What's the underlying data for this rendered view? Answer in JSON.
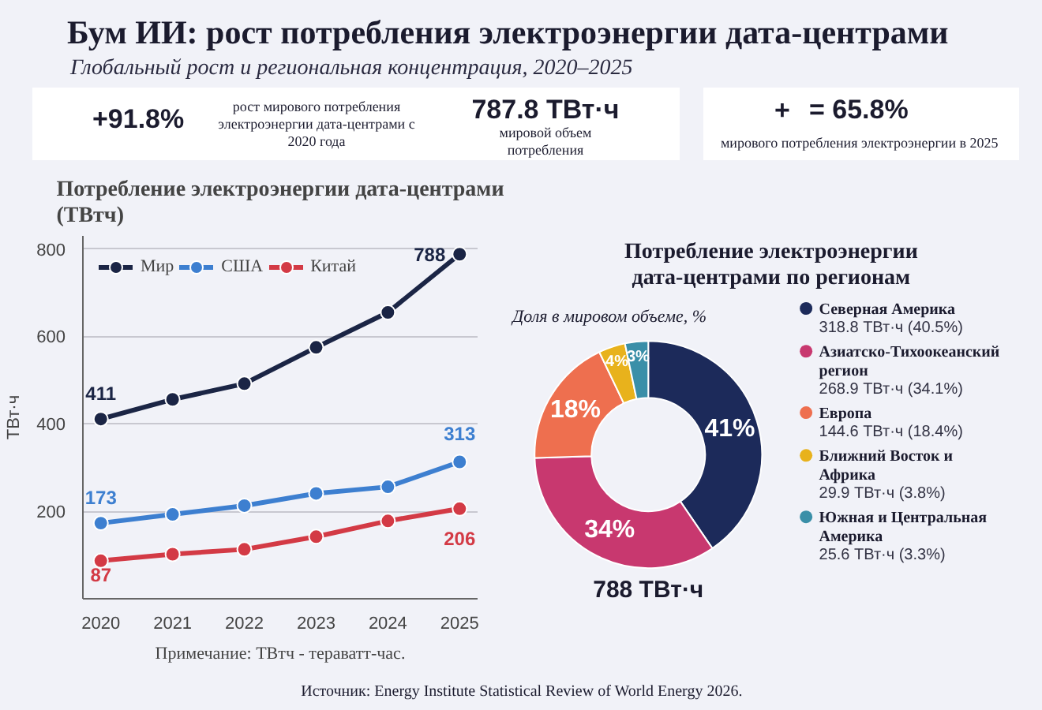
{
  "chart_data": [
    {
      "type": "other",
      "title": "Бум ИИ: рост потребления электроэнергии дата-центрами",
      "subtitle": "Глобальный рост и региональная концентрация, 2020–2025",
      "annotations": [
        "+91.8%",
        "рост мирового потребления электроэнергии дата-центрами с 2020 года",
        "787.8 ТВт·ч",
        "мировой объем потребления",
        "+",
        "= 65.8%",
        "мирового потребления электроэнергии  в 2025",
        "Источник: Energy Institute Statistical Review of World Energy 2026."
      ]
    },
    {
      "type": "line",
      "title": "Потребление электроэнергии дата-центрами (ТВтч)",
      "ylabel": "ТВт·ч",
      "categories": [
        "2020",
        "2021",
        "2022",
        "2023",
        "2024",
        "2025"
      ],
      "series": [
        {
          "name": "Мир",
          "color": "#1b2545",
          "values": [
            411,
            456,
            492,
            575,
            655,
            788
          ],
          "value_labels": [
            "411",
            null,
            null,
            null,
            null,
            "788"
          ]
        },
        {
          "name": "США",
          "color": "#3d7fd0",
          "values": [
            173,
            193,
            213,
            241,
            256,
            313
          ],
          "value_labels": [
            "173",
            null,
            null,
            null,
            null,
            "313"
          ]
        },
        {
          "name": "Китай",
          "color": "#d33a45",
          "values": [
            87,
            102,
            113,
            142,
            178,
            206
          ],
          "value_labels": [
            "87",
            null,
            null,
            null,
            null,
            "206"
          ]
        }
      ],
      "ylim": [
        0,
        830
      ],
      "yticks": [
        200,
        400,
        600,
        800
      ],
      "grid": "y",
      "legend": "top left",
      "marker": "circle",
      "line_style": "solid",
      "annotations": [
        "Примечание: ТВтч - тераватт-час."
      ]
    },
    {
      "type": "donut",
      "title": "Потребление электроэнергии дата-центрами по регионам",
      "subtitle": "Доля в мировом объеме, %",
      "categories": [
        "Северная Америка",
        "Азиатско-Тихоокеанский регион",
        "Европа",
        "Ближний Восток и Африка",
        "Южная и Центральная Америка"
      ],
      "values": [
        40.5,
        34.1,
        18.4,
        3.8,
        3.3
      ],
      "value_labels": [
        "41%",
        "34%",
        "18%",
        "4%",
        "3%"
      ],
      "colors": [
        "#1c2a5a",
        "#c8386f",
        "#ee6f4f",
        "#e8b21c",
        "#3a8fa8"
      ],
      "legend": "right",
      "annotations": [
        "318.8 ТВт·ч (40.5%)",
        "268.9 ТВт·ч (34.1%)",
        "144.6 ТВт·ч (18.4%)",
        "29.9 ТВт·ч (3.8%)",
        "25.6 ТВт·ч (3.3%)",
        "788 ТВт·ч"
      ]
    }
  ]
}
